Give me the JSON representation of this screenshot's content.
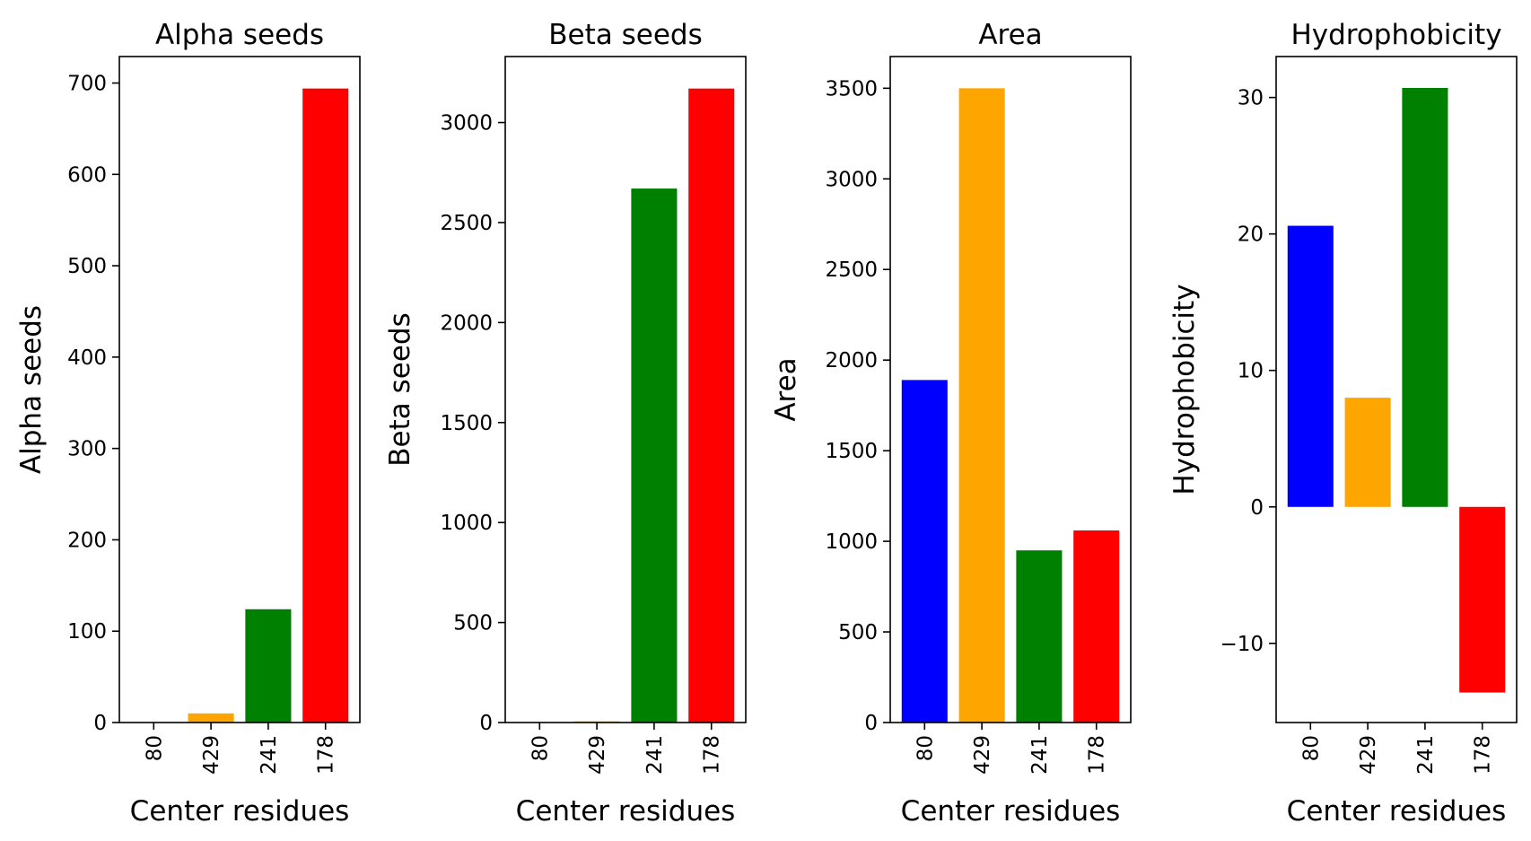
{
  "chart_data": [
    {
      "type": "bar",
      "title": "Alpha seeds",
      "xlabel": "Center residues",
      "ylabel": "Alpha seeds",
      "categories": [
        "80",
        "429",
        "241",
        "178"
      ],
      "values": [
        0,
        10,
        124,
        694
      ],
      "colors": [
        "#0000ff",
        "#ffa500",
        "#008000",
        "#ff0000"
      ],
      "ylim": [
        0,
        729
      ],
      "yticks": [
        0,
        100,
        200,
        300,
        400,
        500,
        600,
        700
      ],
      "ytick_labels": [
        "0",
        "100",
        "200",
        "300",
        "400",
        "500",
        "600",
        "700"
      ],
      "grid": false
    },
    {
      "type": "bar",
      "title": "Beta seeds",
      "xlabel": "Center residues",
      "ylabel": "Beta seeds",
      "categories": [
        "80",
        "429",
        "241",
        "178"
      ],
      "values": [
        0,
        6,
        2670,
        3170
      ],
      "colors": [
        "#0000ff",
        "#ffa500",
        "#008000",
        "#ff0000"
      ],
      "ylim": [
        0,
        3330
      ],
      "yticks": [
        0,
        500,
        1000,
        1500,
        2000,
        2500,
        3000
      ],
      "ytick_labels": [
        "0",
        "500",
        "1000",
        "1500",
        "2000",
        "2500",
        "3000"
      ],
      "grid": false
    },
    {
      "type": "bar",
      "title": "Area",
      "xlabel": "Center residues",
      "ylabel": "Area",
      "categories": [
        "80",
        "429",
        "241",
        "178"
      ],
      "values": [
        1890,
        3500,
        950,
        1060
      ],
      "colors": [
        "#0000ff",
        "#ffa500",
        "#008000",
        "#ff0000"
      ],
      "ylim": [
        0,
        3675
      ],
      "yticks": [
        0,
        500,
        1000,
        1500,
        2000,
        2500,
        3000,
        3500
      ],
      "ytick_labels": [
        "0",
        "500",
        "1000",
        "1500",
        "2000",
        "2500",
        "3000",
        "3500"
      ],
      "grid": false
    },
    {
      "type": "bar",
      "title": "Hydrophobicity",
      "xlabel": "Center residues",
      "ylabel": "Hydrophobicity",
      "categories": [
        "80",
        "429",
        "241",
        "178"
      ],
      "values": [
        20.6,
        8.0,
        30.7,
        -13.6
      ],
      "colors": [
        "#0000ff",
        "#ffa500",
        "#008000",
        "#ff0000"
      ],
      "ylim": [
        -15.8,
        33.0
      ],
      "yticks": [
        -10,
        0,
        10,
        20,
        30
      ],
      "ytick_labels": [
        "−10",
        "0",
        "10",
        "20",
        "30"
      ],
      "grid": false
    }
  ]
}
